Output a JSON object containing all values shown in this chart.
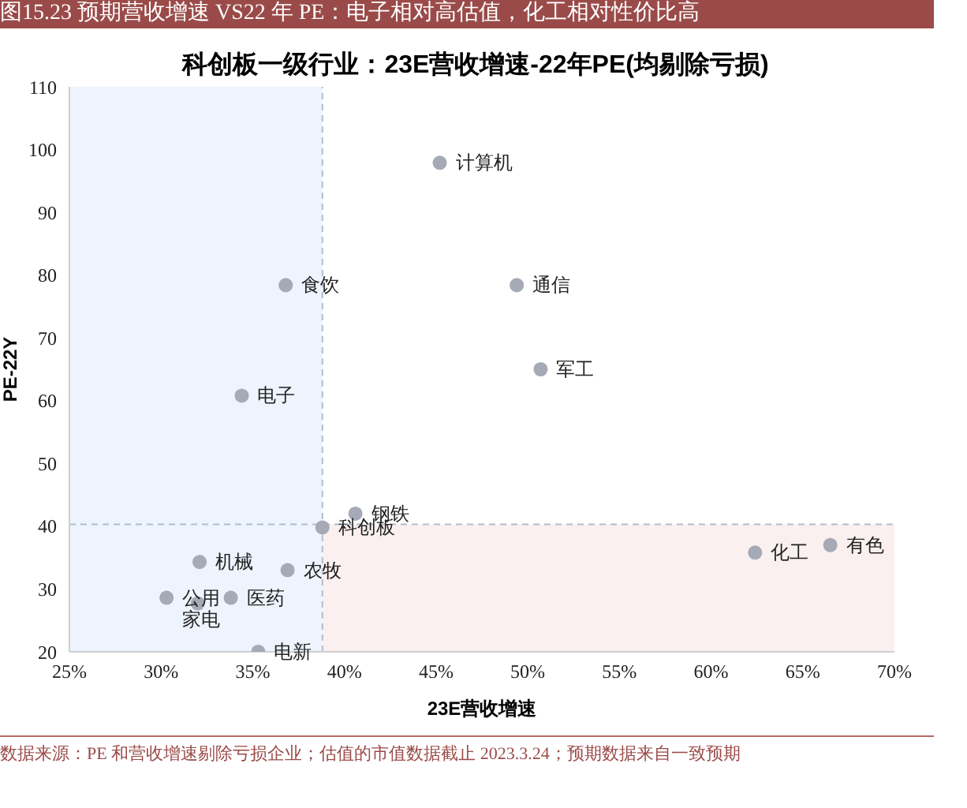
{
  "chart_data": {
    "type": "scatter",
    "title": "图15.23 预期营收增速 VS22 年 PE：电子相对高估值，化工相对性价比高",
    "subtitle": "科创板一级行业：23E营收增速-22年PE(均剔除亏损)",
    "xlabel": "23E营收增速",
    "ylabel": "PE-22Y",
    "x": [
      45.2,
      36.8,
      49.4,
      50.7,
      34.4,
      40.6,
      38.8,
      32.1,
      36.9,
      30.3,
      32.0,
      33.8,
      35.3,
      62.4,
      66.5
    ],
    "series": [
      {
        "color": "#a6a9b6",
        "values": [
          97.9,
          78.4,
          78.4,
          65.0,
          60.8,
          42.0,
          39.8,
          34.3,
          33.0,
          28.6,
          27.7,
          28.6,
          20.0,
          35.8,
          37.0
        ]
      }
    ],
    "annotations": [
      {
        "text": "计算机",
        "x": 45.2,
        "y": 97.9
      },
      {
        "text": "食饮",
        "x": 36.8,
        "y": 78.4
      },
      {
        "text": "通信",
        "x": 49.4,
        "y": 78.4
      },
      {
        "text": "军工",
        "x": 50.7,
        "y": 65.0
      },
      {
        "text": "电子",
        "x": 34.4,
        "y": 60.8
      },
      {
        "text": "钢铁",
        "x": 40.6,
        "y": 42.0
      },
      {
        "text": "科创板",
        "x": 38.8,
        "y": 39.8
      },
      {
        "text": "机械",
        "x": 32.1,
        "y": 34.3
      },
      {
        "text": "农牧",
        "x": 36.9,
        "y": 33.0
      },
      {
        "text": "公用",
        "x": 30.3,
        "y": 28.6
      },
      {
        "text": "家电",
        "x": 32.0,
        "y": 27.7
      },
      {
        "text": "医药",
        "x": 33.8,
        "y": 28.6
      },
      {
        "text": "电新",
        "x": 35.3,
        "y": 20.0
      },
      {
        "text": "化工",
        "x": 62.4,
        "y": 35.8
      },
      {
        "text": "有色",
        "x": 66.5,
        "y": 37.0
      },
      "数据来源：PE 和营收增速剔除亏损企业；估值的市值数据截止 2023.3.24；预期数据来自一致预期"
    ],
    "xlim": [
      25,
      70
    ],
    "xticks": [
      {
        "value": 25,
        "label": "25%"
      },
      {
        "value": 30,
        "label": "30%"
      },
      {
        "value": 35,
        "label": "35%"
      },
      {
        "value": 40,
        "label": "40%"
      },
      {
        "value": 45,
        "label": "45%"
      },
      {
        "value": 50,
        "label": "50%"
      },
      {
        "value": 55,
        "label": "55%"
      },
      {
        "value": 60,
        "label": "60%"
      },
      {
        "value": 65,
        "label": "65%"
      },
      {
        "value": 70,
        "label": "70%"
      }
    ],
    "ylim": [
      20,
      110
    ],
    "yticks": [
      20,
      30,
      40,
      50,
      60,
      70,
      80,
      90,
      100,
      110
    ],
    "bands": [
      {
        "axis": "x",
        "from": 25,
        "to": 38.8,
        "color": "#edf4fd"
      },
      {
        "axis": "y",
        "from": 20,
        "to": 40.3,
        "color": "#fbf0f0"
      }
    ],
    "ref_lines": [
      {
        "axis": "x",
        "value": 38.8,
        "line_style": "dashed",
        "color": "#b4bccb"
      },
      {
        "axis": "y",
        "value": 40.3,
        "line_style": "dashed",
        "color": "#b4bccb"
      }
    ],
    "grid": false,
    "legend": false,
    "marker": "circle"
  }
}
